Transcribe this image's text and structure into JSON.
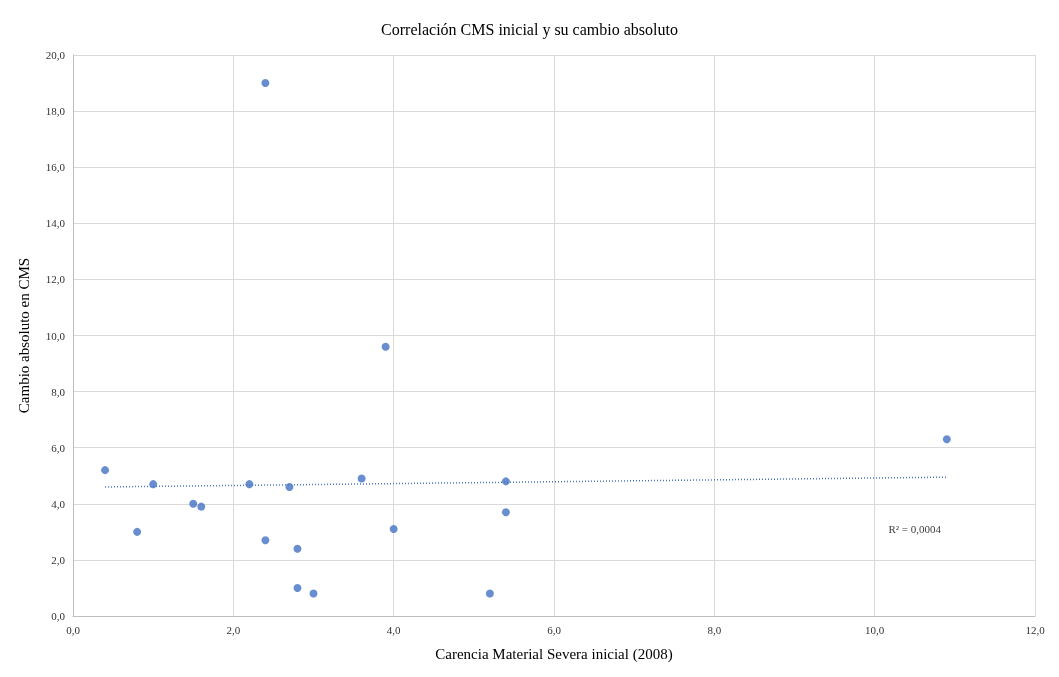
{
  "chart_data": {
    "type": "scatter",
    "title": "Correlación CMS inicial y su cambio absoluto",
    "xlabel": "Carencia Material Severa inicial (2008)",
    "ylabel": "Cambio absoluto en CMS",
    "xlim": [
      0,
      12
    ],
    "xticks": [
      {
        "value": 0,
        "label": "0,0"
      },
      {
        "value": 2,
        "label": "2,0"
      },
      {
        "value": 4,
        "label": "4,0"
      },
      {
        "value": 6,
        "label": "6,0"
      },
      {
        "value": 8,
        "label": "8,0"
      },
      {
        "value": 10,
        "label": "10,0"
      },
      {
        "value": 12,
        "label": "12,0"
      }
    ],
    "ylim": [
      0,
      20
    ],
    "yticks": [
      {
        "value": 0,
        "label": "0,0"
      },
      {
        "value": 2,
        "label": "2,0"
      },
      {
        "value": 4,
        "label": "4,0"
      },
      {
        "value": 6,
        "label": "6,0"
      },
      {
        "value": 8,
        "label": "8,0"
      },
      {
        "value": 10,
        "label": "10,0"
      },
      {
        "value": 12,
        "label": "12,0"
      },
      {
        "value": 14,
        "label": "14,0"
      },
      {
        "value": 16,
        "label": "16,0"
      },
      {
        "value": 18,
        "label": "18,0"
      },
      {
        "value": 20,
        "label": "20,0"
      }
    ],
    "grid": true,
    "marker": "circle",
    "series": [
      {
        "color": "#4472c4",
        "x": [
          0.4,
          0.8,
          1.0,
          1.5,
          1.6,
          2.2,
          2.4,
          2.4,
          2.7,
          2.8,
          2.8,
          3.0,
          3.6,
          3.9,
          4.0,
          5.2,
          5.4,
          5.4,
          10.9
        ],
        "values": [
          5.2,
          3.0,
          4.7,
          4.0,
          3.9,
          4.7,
          19.0,
          2.7,
          4.6,
          2.4,
          1.0,
          0.8,
          4.9,
          9.6,
          3.1,
          0.8,
          4.8,
          3.7,
          6.3
        ]
      },
      {
        "type": "line",
        "color": "#4472c4",
        "line_style": "dotted",
        "marker": "none",
        "x": [
          0.4,
          10.9
        ],
        "values": [
          4.6,
          4.95
        ]
      }
    ],
    "annotations": [
      "R² = 0,0004"
    ]
  }
}
